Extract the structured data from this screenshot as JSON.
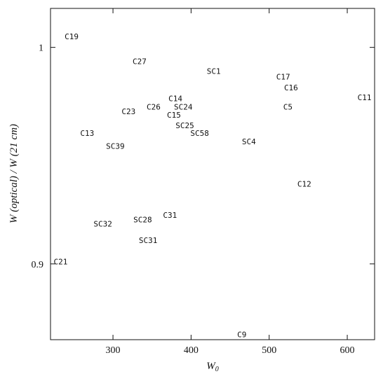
{
  "chart_data": {
    "type": "scatter",
    "title": "",
    "xlabel": "W",
    "xlabel_subscript": "0",
    "ylabel": "W (optical) / W (21 cm)",
    "xlim": [
      220,
      635
    ],
    "ylim": [
      0.865,
      1.018
    ],
    "x_ticks": [
      300,
      400,
      500,
      600
    ],
    "y_ticks": [
      0.9,
      1
    ],
    "x_tick_labels": [
      "300",
      "400",
      "500",
      "600"
    ],
    "y_tick_labels": [
      "0.9",
      "1"
    ],
    "marker": "label-text",
    "grid": false,
    "points": [
      {
        "label": "C19",
        "x": 247,
        "y": 1.005
      },
      {
        "label": "C27",
        "x": 334,
        "y": 0.9935
      },
      {
        "label": "SC1",
        "x": 429,
        "y": 0.989
      },
      {
        "label": "C17",
        "x": 518,
        "y": 0.9865
      },
      {
        "label": "C16",
        "x": 528,
        "y": 0.9815
      },
      {
        "label": "C11",
        "x": 622,
        "y": 0.977
      },
      {
        "label": "C14",
        "x": 380,
        "y": 0.9765
      },
      {
        "label": "SC24",
        "x": 390,
        "y": 0.9725
      },
      {
        "label": "C26",
        "x": 352,
        "y": 0.9725
      },
      {
        "label": "C5",
        "x": 524,
        "y": 0.9725
      },
      {
        "label": "C23",
        "x": 320,
        "y": 0.9705
      },
      {
        "label": "C15",
        "x": 378,
        "y": 0.9688
      },
      {
        "label": "SC25",
        "x": 392,
        "y": 0.964
      },
      {
        "label": "SC58",
        "x": 411,
        "y": 0.9605
      },
      {
        "label": "C13",
        "x": 267,
        "y": 0.9605
      },
      {
        "label": "SC4",
        "x": 474,
        "y": 0.9565
      },
      {
        "label": "SC39",
        "x": 303,
        "y": 0.9545
      },
      {
        "label": "C12",
        "x": 545,
        "y": 0.937
      },
      {
        "label": "C31",
        "x": 373,
        "y": 0.9225
      },
      {
        "label": "SC28",
        "x": 338,
        "y": 0.9205
      },
      {
        "label": "SC32",
        "x": 287,
        "y": 0.9185
      },
      {
        "label": "SC31",
        "x": 345,
        "y": 0.911
      },
      {
        "label": "C21",
        "x": 233,
        "y": 0.901
      },
      {
        "label": "C9",
        "x": 465,
        "y": 0.8675
      }
    ]
  }
}
